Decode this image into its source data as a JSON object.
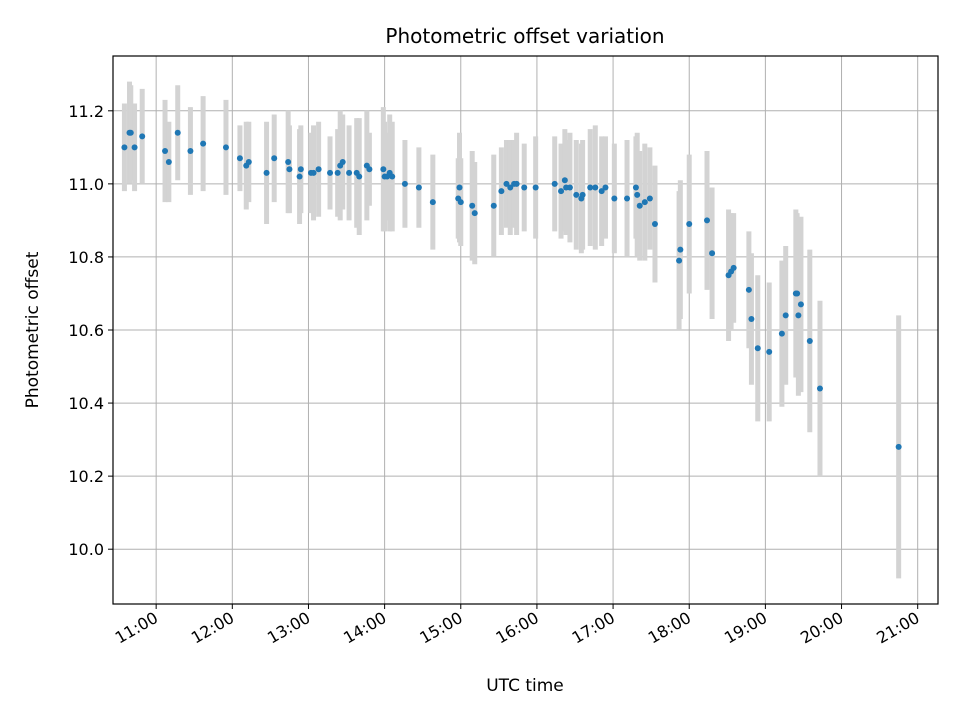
{
  "chart_data": {
    "type": "scatter",
    "title": "Photometric offset variation",
    "xlabel": "UTC time",
    "ylabel": "Photometric offset",
    "x_tick_labels": [
      "11:00",
      "12:00",
      "13:00",
      "14:00",
      "15:00",
      "16:00",
      "17:00",
      "18:00",
      "19:00",
      "20:00",
      "21:00"
    ],
    "y_ticks": [
      10.0,
      10.2,
      10.4,
      10.6,
      10.8,
      11.0,
      11.2
    ],
    "y_tick_labels": [
      "10.0",
      "10.2",
      "10.4",
      "10.6",
      "10.8",
      "11.0",
      "11.2"
    ],
    "xlim": [
      "10:26",
      "21:16"
    ],
    "ylim": [
      9.85,
      11.35
    ],
    "grid": true,
    "point_color": "#1f77b4",
    "errorbar_color": "#d3d3d3",
    "series": [
      {
        "x": [
          "10:35",
          "10:39",
          "10:40",
          "10:43",
          "10:49",
          "11:07",
          "11:10",
          "11:17",
          "11:27",
          "11:37",
          "11:55",
          "12:06",
          "12:11",
          "12:13",
          "12:27",
          "12:33",
          "12:44",
          "12:45",
          "12:53",
          "12:54",
          "13:02",
          "13:04",
          "13:08",
          "13:17",
          "13:23",
          "13:25",
          "13:27",
          "13:32",
          "13:38",
          "13:40",
          "13:46",
          "13:48",
          "13:59",
          "14:00",
          "14:02",
          "14:04",
          "14:06",
          "14:16",
          "14:27",
          "14:38",
          "14:58",
          "14:59",
          "15:00",
          "15:09",
          "15:11",
          "15:26",
          "15:32",
          "15:36",
          "15:39",
          "15:42",
          "15:44",
          "15:50",
          "15:59",
          "16:14",
          "16:19",
          "16:22",
          "16:23",
          "16:26",
          "16:31",
          "16:35",
          "16:36",
          "16:42",
          "16:46",
          "16:51",
          "16:54",
          "17:01",
          "17:11",
          "17:18",
          "17:19",
          "17:21",
          "17:25",
          "17:29",
          "17:33",
          "17:52",
          "17:53",
          "18:00",
          "18:14",
          "18:18",
          "18:31",
          "18:33",
          "18:35",
          "18:47",
          "18:49",
          "18:54",
          "19:03",
          "19:13",
          "19:16",
          "19:24",
          "19:25",
          "19:26",
          "19:28",
          "19:35",
          "19:43",
          "20:45"
        ],
        "y": [
          11.1,
          11.14,
          11.14,
          11.1,
          11.13,
          11.09,
          11.06,
          11.14,
          11.09,
          11.11,
          11.1,
          11.07,
          11.05,
          11.06,
          11.03,
          11.07,
          11.06,
          11.04,
          11.02,
          11.04,
          11.03,
          11.03,
          11.04,
          11.03,
          11.03,
          11.05,
          11.06,
          11.03,
          11.03,
          11.02,
          11.05,
          11.04,
          11.04,
          11.02,
          11.02,
          11.03,
          11.02,
          11.0,
          10.99,
          10.95,
          10.96,
          10.99,
          10.95,
          10.94,
          10.92,
          10.94,
          10.98,
          11.0,
          10.99,
          11.0,
          11.0,
          10.99,
          10.99,
          11.0,
          10.98,
          11.01,
          10.99,
          10.99,
          10.97,
          10.96,
          10.97,
          10.99,
          10.99,
          10.98,
          10.99,
          10.96,
          10.96,
          10.99,
          10.97,
          10.94,
          10.95,
          10.96,
          10.89,
          10.79,
          10.82,
          10.89,
          10.9,
          10.81,
          10.75,
          10.76,
          10.77,
          10.71,
          10.63,
          10.55,
          10.54,
          10.59,
          10.64,
          10.7,
          10.7,
          10.64,
          10.67,
          10.57,
          10.44,
          10.28
        ],
        "err": [
          0.12,
          0.14,
          0.13,
          0.12,
          0.13,
          0.14,
          0.11,
          0.13,
          0.12,
          0.13,
          0.13,
          0.09,
          0.12,
          0.11,
          0.14,
          0.12,
          0.14,
          0.12,
          0.13,
          0.12,
          0.11,
          0.13,
          0.13,
          0.1,
          0.12,
          0.15,
          0.13,
          0.13,
          0.15,
          0.16,
          0.15,
          0.1,
          0.17,
          0.15,
          0.12,
          0.16,
          0.15,
          0.12,
          0.11,
          0.13,
          0.11,
          0.15,
          0.12,
          0.15,
          0.14,
          0.14,
          0.12,
          0.12,
          0.13,
          0.12,
          0.14,
          0.12,
          0.14,
          0.13,
          0.13,
          0.14,
          0.13,
          0.15,
          0.15,
          0.15,
          0.15,
          0.16,
          0.17,
          0.15,
          0.14,
          0.15,
          0.16,
          0.14,
          0.17,
          0.15,
          0.16,
          0.14,
          0.16,
          0.19,
          0.19,
          0.19,
          0.19,
          0.18,
          0.18,
          0.16,
          0.15,
          0.16,
          0.18,
          0.2,
          0.19,
          0.2,
          0.19,
          0.23,
          0.22,
          0.22,
          0.24,
          0.25,
          0.24,
          0.36
        ]
      }
    ]
  }
}
